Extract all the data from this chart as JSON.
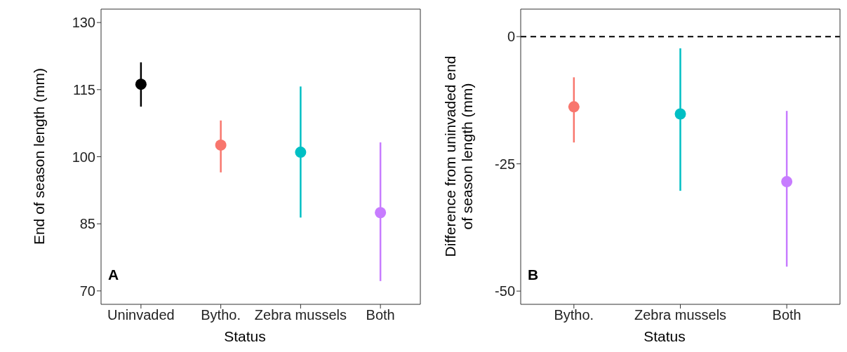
{
  "chart_data": [
    {
      "type": "scatter",
      "categories": [
        "Uninvaded",
        "Bytho.",
        "Zebra mussels",
        "Both"
      ],
      "values": [
        116.2,
        102.6,
        101.0,
        87.5
      ],
      "colors": [
        "#000000",
        "#f8766d",
        "#00bfc4",
        "#c77cff"
      ],
      "errors": [
        [
          111.2,
          121.1
        ],
        [
          96.5,
          108.1
        ],
        [
          86.4,
          115.7
        ],
        [
          72.2,
          103.2
        ]
      ],
      "ylim": [
        67,
        133
      ],
      "yticks": [
        70,
        85,
        100,
        115,
        130
      ],
      "xlabel": "Status",
      "ylabel": "End of season length (mm)",
      "annotations": [
        "A"
      ],
      "marker": "circle",
      "grid": false,
      "legend": false
    },
    {
      "type": "scatter",
      "categories": [
        "Bytho.",
        "Zebra mussels",
        "Both"
      ],
      "values": [
        -13.8,
        -15.2,
        -28.5
      ],
      "colors": [
        "#f8766d",
        "#00bfc4",
        "#c77cff"
      ],
      "errors": [
        [
          -20.8,
          -8.0
        ],
        [
          -30.3,
          -2.3
        ],
        [
          -45.2,
          -14.6
        ]
      ],
      "ylim": [
        -52.6,
        5.4
      ],
      "yticks": [
        -50,
        -25,
        0
      ],
      "xlabel": "Status",
      "ylabel": "Difference from uninvaded end of season length (mm)",
      "annotations": [
        "B"
      ],
      "ref_lines": [
        {
          "axis": "y",
          "value": 0,
          "line_style": "dashed",
          "color": "#000000"
        }
      ],
      "marker": "circle",
      "grid": false,
      "legend": false
    }
  ]
}
